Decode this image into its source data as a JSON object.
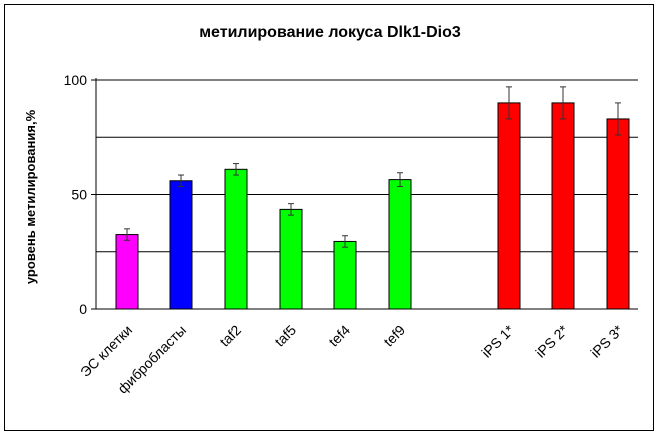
{
  "chart_data": {
    "type": "bar",
    "title": "метилирование локуса Dlk1-Dio3",
    "xlabel": "",
    "ylabel": "уровень метилирования,%",
    "ylim": [
      0,
      100
    ],
    "yticks": [
      "0",
      "50",
      "100"
    ],
    "gridlines": [
      25,
      50,
      75,
      100
    ],
    "grid": true,
    "legend": "none",
    "categories": [
      "ЭС клетки",
      "фибробласты",
      "taf2",
      "taf5",
      "tef4",
      "tef9",
      "iPS 1*",
      "iPS 2*",
      "iPS 3*"
    ],
    "values": [
      32.5,
      56,
      61,
      43.5,
      29.5,
      56.5,
      90,
      90,
      83
    ],
    "errors": [
      2.5,
      2.5,
      2.5,
      2.5,
      2.5,
      3,
      7,
      7,
      7
    ],
    "colors": [
      "#ff00ff",
      "#0000ff",
      "#00ff00",
      "#00ff00",
      "#00ff00",
      "#00ff00",
      "#ff0000",
      "#ff0000",
      "#ff0000"
    ]
  }
}
